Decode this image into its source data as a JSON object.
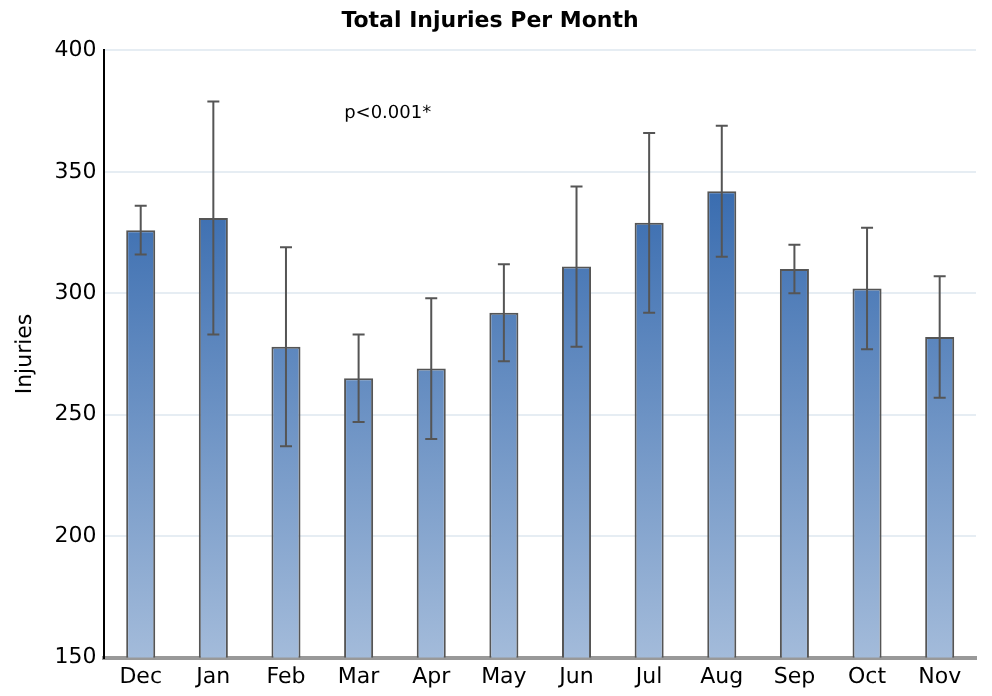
{
  "chart_data": {
    "type": "bar",
    "title": "Total Injuries Per Month",
    "ylabel": "Injuries",
    "categories": [
      "Dec",
      "Jan",
      "Feb",
      "Mar",
      "Apr",
      "May",
      "Jun",
      "Jul",
      "Aug",
      "Sep",
      "Oct",
      "Nov"
    ],
    "values": [
      326,
      331,
      278,
      265,
      269,
      292,
      311,
      329,
      342,
      310,
      302,
      282
    ],
    "errors": [
      10,
      48,
      41,
      18,
      29,
      20,
      33,
      37,
      27,
      10,
      25,
      25
    ],
    "color": "#1a55a3",
    "ylim": [
      150,
      400
    ],
    "yticks": [
      150,
      200,
      250,
      300,
      350,
      400
    ],
    "grid": "y",
    "annotations": [
      "p<0.001*"
    ]
  }
}
